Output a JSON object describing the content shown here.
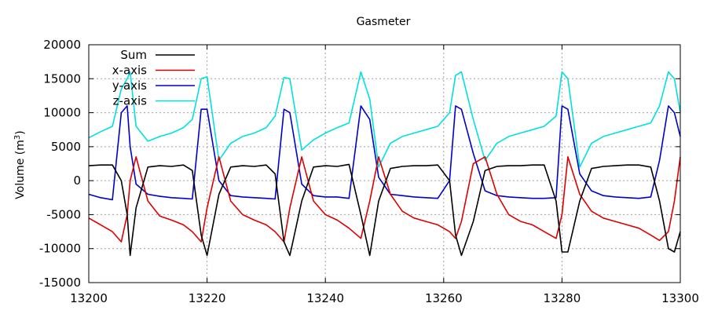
{
  "chart_data": {
    "type": "line",
    "title": "Gasmeter",
    "xlabel": "",
    "ylabel": "Volume (m",
    "ylabel_sup": "3",
    "ylabel_end": ")",
    "xlim": [
      13200,
      13300
    ],
    "ylim": [
      -15000,
      20000
    ],
    "xticks": [
      13200,
      13220,
      13240,
      13260,
      13280,
      13300
    ],
    "yticks": [
      -15000,
      -10000,
      -5000,
      0,
      5000,
      10000,
      15000,
      20000
    ],
    "grid": true,
    "legend_position": "top-left",
    "x": [
      13200,
      13202,
      13204,
      13205.5,
      13206.5,
      13207,
      13208,
      13210,
      13212,
      13214,
      13216,
      13217.5,
      13219,
      13220,
      13222,
      13224,
      13226,
      13228,
      13230,
      13231.5,
      13233,
      13234,
      13236,
      13238,
      13240,
      13242,
      13244,
      13246,
      13247.5,
      13249,
      13251,
      13253,
      13255,
      13257,
      13259,
      13261,
      13262,
      13263,
      13265,
      13267,
      13269,
      13271,
      13273,
      13275,
      13277,
      13279,
      13280,
      13281,
      13283,
      13285,
      13287,
      13289,
      13291,
      13293,
      13295,
      13296.5,
      13298,
      13299,
      13300
    ],
    "series": [
      {
        "name": "Sum",
        "color": "#000000",
        "values": [
          2200,
          2300,
          2300,
          0,
          -5000,
          -11000,
          -4000,
          2000,
          2200,
          2100,
          2300,
          1500,
          -8000,
          -11000,
          -2000,
          2000,
          2200,
          2100,
          2300,
          1000,
          -9000,
          -11000,
          -3000,
          2000,
          2200,
          2100,
          2400,
          -5000,
          -11000,
          -3000,
          1800,
          2100,
          2200,
          2200,
          2300,
          0,
          -8000,
          -11000,
          -6000,
          1500,
          2100,
          2200,
          2200,
          2300,
          2300,
          -3000,
          -10500,
          -10500,
          -3000,
          1800,
          2100,
          2200,
          2300,
          2300,
          2000,
          -3000,
          -10000,
          -10500,
          -7500
        ]
      },
      {
        "name": "x-axis",
        "color": "#dd0000",
        "values": [
          -5500,
          -6500,
          -7500,
          -9000,
          -5000,
          0,
          3500,
          -3000,
          -5200,
          -5800,
          -6500,
          -7500,
          -9000,
          -4000,
          3500,
          -3000,
          -5000,
          -5800,
          -6500,
          -7500,
          -9000,
          -4000,
          3500,
          -3000,
          -5000,
          -5800,
          -7000,
          -8500,
          -3000,
          3500,
          -2000,
          -4500,
          -5500,
          -6000,
          -6500,
          -7500,
          -8500,
          -6000,
          2500,
          3500,
          -2000,
          -5000,
          -6000,
          -6500,
          -7500,
          -8500,
          -5000,
          3500,
          -2000,
          -4500,
          -5500,
          -6000,
          -6500,
          -7000,
          -8000,
          -8800,
          -7500,
          -3000,
          3500
        ]
      },
      {
        "name": "y-axis",
        "color": "#0000cc",
        "values": [
          -2000,
          -2500,
          -2800,
          10000,
          11000,
          5000,
          -500,
          -2000,
          -2300,
          -2500,
          -2600,
          -2700,
          10500,
          10500,
          0,
          -2200,
          -2400,
          -2500,
          -2600,
          -2700,
          10500,
          10000,
          -500,
          -2200,
          -2400,
          -2400,
          -2600,
          11000,
          9000,
          500,
          -2000,
          -2200,
          -2400,
          -2500,
          -2600,
          0,
          11000,
          10500,
          4000,
          -1500,
          -2200,
          -2400,
          -2500,
          -2600,
          -2600,
          -2500,
          11000,
          10500,
          1000,
          -1500,
          -2200,
          -2400,
          -2500,
          -2600,
          -2400,
          3000,
          11000,
          10000,
          6500
        ]
      },
      {
        "name": "z-axis",
        "color": "#00e0e0",
        "values": [
          6300,
          7200,
          8000,
          13500,
          15000,
          16000,
          8000,
          5800,
          6500,
          7000,
          7800,
          9000,
          15000,
          15300,
          3000,
          5500,
          6500,
          7000,
          7800,
          9500,
          15200,
          15000,
          4500,
          6000,
          7000,
          7800,
          8500,
          16000,
          12000,
          2000,
          5500,
          6500,
          7000,
          7500,
          8000,
          10000,
          15500,
          16000,
          9000,
          3000,
          5500,
          6500,
          7000,
          7500,
          8000,
          9500,
          16000,
          15000,
          2000,
          5500,
          6500,
          7000,
          7500,
          8000,
          8500,
          11000,
          16000,
          15000,
          10000
        ]
      }
    ]
  }
}
